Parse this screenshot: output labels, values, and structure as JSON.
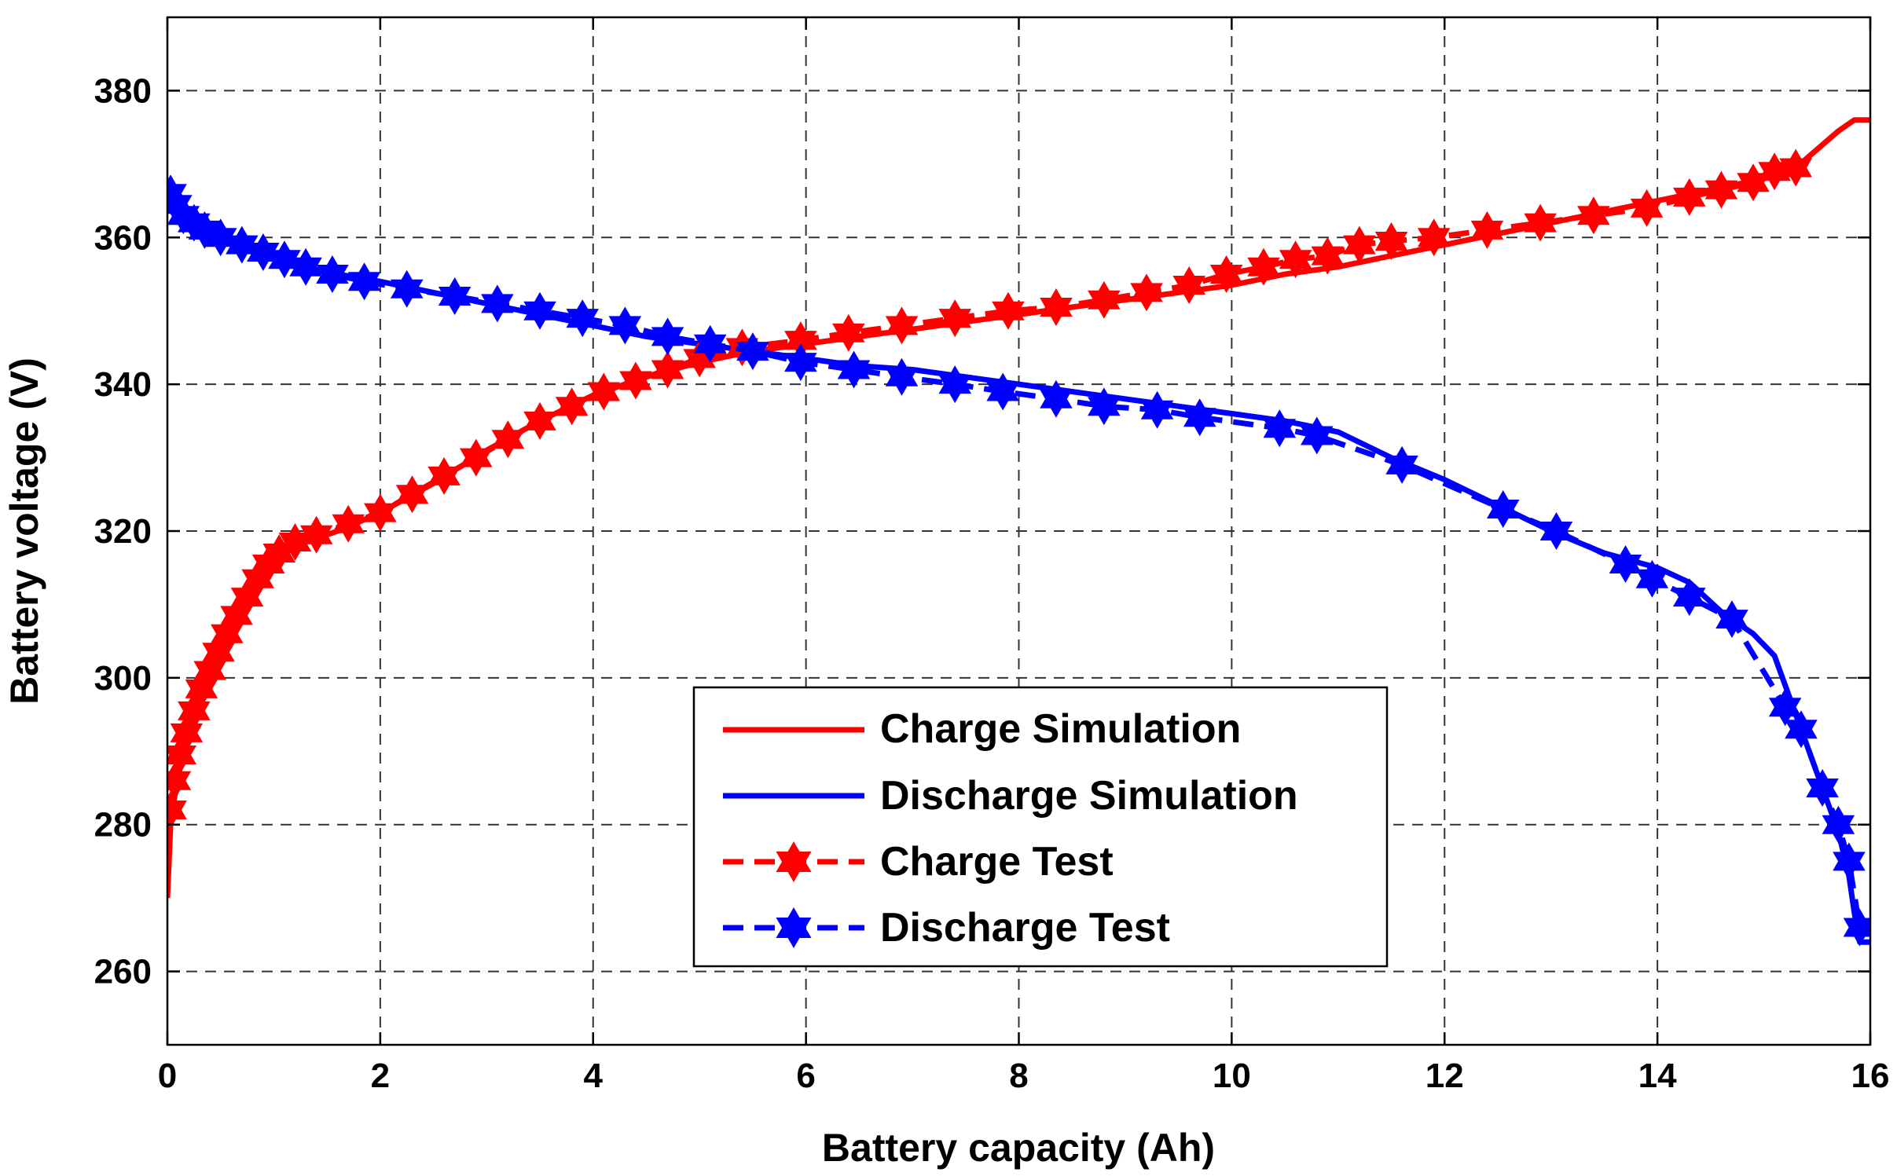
{
  "chart_data": {
    "type": "line",
    "title": "",
    "xlabel": "Battery capacity (Ah)",
    "ylabel": "Battery voltage (V)",
    "xlim": [
      0,
      16
    ],
    "ylim": [
      250,
      390
    ],
    "xticks": [
      0,
      2,
      4,
      6,
      8,
      10,
      12,
      14,
      16
    ],
    "yticks": [
      260,
      280,
      300,
      320,
      340,
      360,
      380
    ],
    "grid": true,
    "legend_position": "center-bottom",
    "series": [
      {
        "name": "Charge Simulation",
        "color": "#ff0000",
        "line": "solid",
        "marker": "none",
        "x": [
          0,
          0.03,
          0.08,
          0.15,
          0.25,
          0.35,
          0.5,
          0.65,
          0.8,
          0.95,
          1.1,
          1.3,
          1.6,
          2.0,
          2.5,
          3.0,
          3.5,
          4.0,
          4.5,
          5.0,
          5.5,
          6.0,
          6.5,
          7.0,
          7.5,
          8.0,
          8.5,
          9.0,
          9.5,
          10.0,
          10.5,
          11.0,
          11.5,
          12.0,
          12.5,
          13.0,
          13.5,
          14.0,
          14.5,
          15.0,
          15.3,
          15.5,
          15.7,
          15.85,
          16.0
        ],
        "y": [
          270,
          280,
          285,
          290,
          295,
          299,
          303,
          307,
          311,
          314,
          317,
          318.5,
          320,
          322.5,
          326.5,
          331,
          335,
          338.5,
          341,
          343,
          344.5,
          345.5,
          346.5,
          347.5,
          348.5,
          349.5,
          350.5,
          351.5,
          352.5,
          353.5,
          355,
          356,
          357.5,
          359,
          360.5,
          362,
          363.5,
          365,
          366.5,
          368,
          369.5,
          372,
          374.5,
          376,
          376
        ]
      },
      {
        "name": "Discharge Simulation",
        "color": "#0000ff",
        "line": "solid",
        "marker": "none",
        "x": [
          0,
          0.1,
          0.2,
          0.35,
          0.5,
          0.7,
          0.9,
          1.2,
          1.6,
          2.0,
          2.5,
          3.0,
          3.5,
          4.0,
          4.5,
          5.0,
          5.5,
          6.0,
          6.5,
          7.0,
          7.5,
          8.0,
          8.5,
          9.0,
          9.5,
          10.0,
          10.5,
          11.0,
          11.5,
          12.0,
          12.5,
          13.0,
          13.5,
          14.0,
          14.3,
          14.6,
          14.9,
          15.1,
          15.3,
          15.5,
          15.7,
          15.8,
          15.85,
          15.9,
          16.0
        ],
        "y": [
          366,
          364,
          362.5,
          361,
          360,
          358.5,
          357.5,
          356,
          355,
          354,
          352.5,
          351,
          349.5,
          348,
          346.5,
          345.5,
          344.5,
          343.5,
          342.5,
          342,
          341,
          340,
          339,
          338,
          337,
          336,
          335,
          333.5,
          330,
          327,
          323.5,
          320,
          317,
          315,
          313,
          309,
          306,
          303,
          295,
          287,
          279,
          273,
          268,
          264,
          264
        ]
      },
      {
        "name": "Charge Test",
        "color": "#ff0000",
        "line": "dashed",
        "marker": "hexagram",
        "x": [
          0.03,
          0.07,
          0.12,
          0.18,
          0.25,
          0.32,
          0.4,
          0.48,
          0.56,
          0.65,
          0.75,
          0.85,
          0.95,
          1.05,
          1.2,
          1.4,
          1.7,
          2.0,
          2.3,
          2.6,
          2.9,
          3.2,
          3.5,
          3.8,
          4.1,
          4.4,
          4.7,
          5.0,
          5.4,
          5.95,
          6.4,
          6.9,
          7.4,
          7.9,
          8.35,
          8.8,
          9.2,
          9.6,
          9.95,
          10.3,
          10.6,
          10.9,
          11.2,
          11.5,
          11.9,
          12.4,
          12.9,
          13.4,
          13.9,
          14.3,
          14.6,
          14.9,
          15.1,
          15.3
        ],
        "y": [
          282,
          286,
          289.5,
          292.5,
          295.5,
          298.5,
          301,
          303.5,
          306,
          308.5,
          311,
          313.5,
          315.5,
          317,
          318.5,
          319.5,
          321,
          322.5,
          325,
          327.5,
          330,
          332.5,
          335,
          337,
          339,
          340.5,
          342,
          343.5,
          345,
          346,
          347,
          348,
          349,
          350,
          350.5,
          351.5,
          352.5,
          353.5,
          355,
          356,
          357,
          357.5,
          359,
          359.5,
          360,
          361,
          362,
          363,
          364,
          365.5,
          366.5,
          367.5,
          369,
          369.5
        ]
      },
      {
        "name": "Discharge Test",
        "color": "#0000ff",
        "line": "dashed",
        "marker": "hexagram",
        "x": [
          0.03,
          0.08,
          0.15,
          0.25,
          0.35,
          0.5,
          0.7,
          0.9,
          1.1,
          1.3,
          1.55,
          1.85,
          2.25,
          2.7,
          3.1,
          3.5,
          3.9,
          4.3,
          4.7,
          5.1,
          5.5,
          5.95,
          6.45,
          6.9,
          7.4,
          7.85,
          8.35,
          8.8,
          9.3,
          9.7,
          10.45,
          10.8,
          11.6,
          12.55,
          13.05,
          13.7,
          13.95,
          14.3,
          14.7,
          15.2,
          15.35,
          15.55,
          15.7,
          15.8,
          15.9
        ],
        "y": [
          366,
          364.5,
          363,
          362,
          361,
          360,
          359,
          358,
          357,
          356,
          355,
          354,
          353,
          352,
          351,
          350,
          349,
          348,
          346.5,
          345.5,
          344.5,
          343,
          342,
          341,
          340,
          339,
          338,
          337,
          336.5,
          335.5,
          334,
          333,
          329,
          323,
          320,
          315.5,
          313.5,
          311,
          308,
          296,
          293,
          285,
          280,
          275,
          266
        ]
      }
    ]
  }
}
